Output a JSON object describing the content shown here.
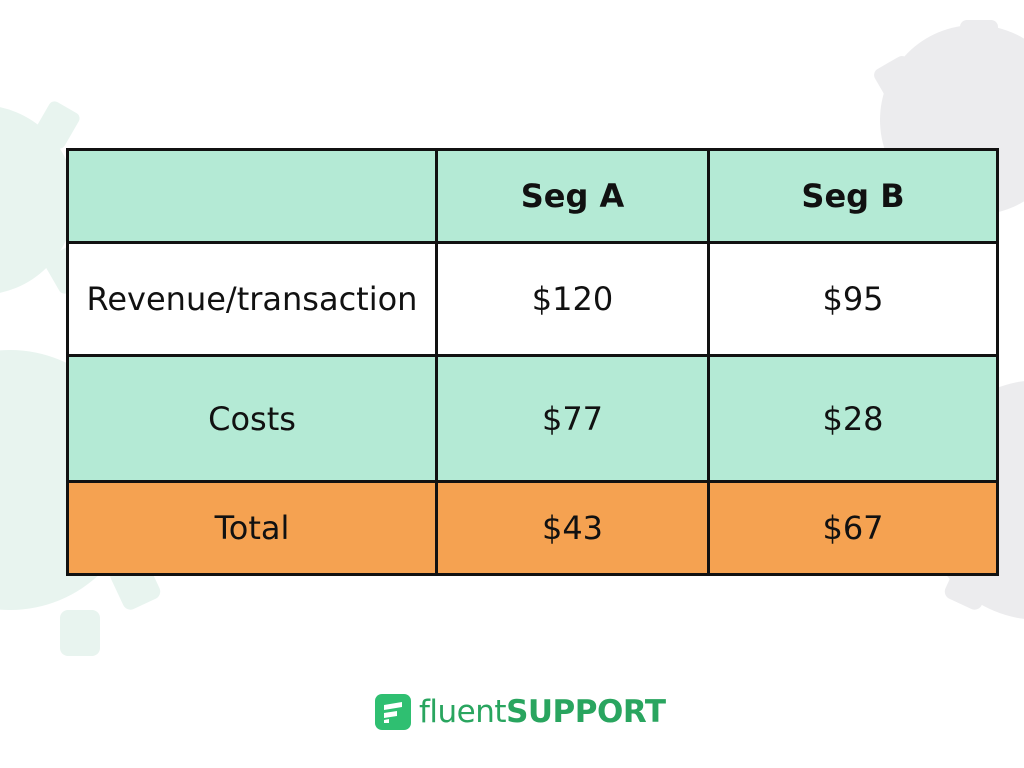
{
  "chart_data": {
    "type": "table",
    "columns": [
      "",
      "Seg A",
      "Seg B"
    ],
    "rows": [
      {
        "label": "Revenue/transaction",
        "values": [
          "$120",
          "$95"
        ],
        "fill": "#ffffff"
      },
      {
        "label": "Costs",
        "values": [
          "$77",
          "$28"
        ],
        "fill": "#b4ead5"
      },
      {
        "label": "Total",
        "values": [
          "$43",
          "$67"
        ],
        "fill": "#f5a251"
      }
    ],
    "header_fill": "#b4ead5",
    "border_color": "#111111"
  },
  "logo": {
    "icon": "fluent-support-logo-mark",
    "text_light": "fluent",
    "text_bold": "SUPPORT",
    "color": "#29a55f"
  },
  "background": {
    "decor": "gear-watermark",
    "gear_colors": [
      "#e8f4ef",
      "#ececee"
    ]
  }
}
